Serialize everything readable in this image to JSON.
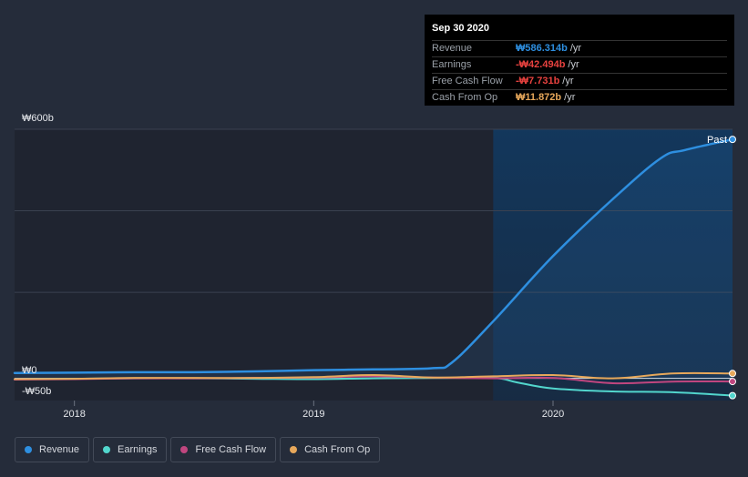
{
  "chart_data": {
    "type": "area",
    "title": "",
    "xlabel": "",
    "ylabel": "",
    "currency_prefix": "₩",
    "y_axis_labels": [
      "₩600b",
      "₩0",
      "-₩50b"
    ],
    "ylim": [
      -50,
      600
    ],
    "x_ticks": [
      {
        "label": "2018",
        "year": 2018.0
      },
      {
        "label": "2019",
        "year": 2019.0
      },
      {
        "label": "2020",
        "year": 2020.0
      }
    ],
    "xlim": [
      2017.75,
      2020.75
    ],
    "past_start": 2019.75,
    "past_label": "Past",
    "colors": {
      "revenue": "#2e8fe0",
      "earnings": "#52d6cd",
      "free_cash_flow": "#c0467f",
      "cash_from_op": "#e7a85b"
    },
    "series": [
      {
        "key": "revenue",
        "name": "Revenue",
        "x": [
          2017.75,
          2018.0,
          2018.25,
          2018.5,
          2018.75,
          2019.0,
          2019.25,
          2019.5,
          2019.58,
          2019.75,
          2020.0,
          2020.25,
          2020.45,
          2020.55,
          2020.75
        ],
        "y": [
          13,
          14,
          15,
          15,
          17,
          20,
          22,
          25,
          40,
          140,
          300,
          440,
          540,
          560,
          586.314
        ]
      },
      {
        "key": "earnings",
        "name": "Earnings",
        "x": [
          2017.75,
          2018.0,
          2018.25,
          2018.5,
          2018.75,
          2019.0,
          2019.25,
          2019.5,
          2019.75,
          2019.85,
          2020.0,
          2020.25,
          2020.5,
          2020.75
        ],
        "y": [
          -2,
          -1,
          0,
          0,
          -1,
          -2,
          0,
          1,
          1,
          -10,
          -25,
          -32,
          -34,
          -42.494
        ]
      },
      {
        "key": "free_cash_flow",
        "name": "Free Cash Flow",
        "x": [
          2017.75,
          2018.0,
          2018.25,
          2018.5,
          2018.75,
          2019.0,
          2019.25,
          2019.5,
          2019.75,
          2020.0,
          2020.25,
          2020.5,
          2020.75
        ],
        "y": [
          -3,
          -2,
          0,
          0,
          1,
          2,
          5,
          2,
          0,
          1,
          -12,
          -8,
          -7.731
        ]
      },
      {
        "key": "cash_from_op",
        "name": "Cash From Op",
        "x": [
          2017.75,
          2018.0,
          2018.25,
          2018.5,
          2018.75,
          2019.0,
          2019.25,
          2019.5,
          2019.75,
          2020.0,
          2020.25,
          2020.5,
          2020.75
        ],
        "y": [
          -2,
          -1,
          1,
          1,
          1,
          3,
          8,
          2,
          5,
          8,
          0,
          12,
          11.872
        ]
      }
    ]
  },
  "tooltip": {
    "date": "Sep 30 2020",
    "rows": [
      {
        "label": "Revenue",
        "value": "₩586.314b",
        "unit": "/yr",
        "color": "#2e8fe0"
      },
      {
        "label": "Earnings",
        "value": "-₩42.494b",
        "unit": "/yr",
        "color": "#e8423f"
      },
      {
        "label": "Free Cash Flow",
        "value": "-₩7.731b",
        "unit": "/yr",
        "color": "#e8423f"
      },
      {
        "label": "Cash From Op",
        "value": "₩11.872b",
        "unit": "/yr",
        "color": "#e7a85b"
      }
    ]
  },
  "legend": [
    {
      "label": "Revenue",
      "color": "#2e8fe0"
    },
    {
      "label": "Earnings",
      "color": "#52d6cd"
    },
    {
      "label": "Free Cash Flow",
      "color": "#c0467f"
    },
    {
      "label": "Cash From Op",
      "color": "#e7a85b"
    }
  ]
}
